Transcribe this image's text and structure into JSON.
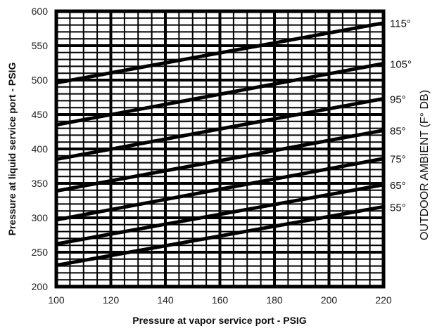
{
  "chart_data": {
    "type": "line",
    "xlabel": "Pressure at vapor service port - PSIG",
    "ylabel": "Pressure at liquid service port - PSIG",
    "right_label": "OUTDOOR AMBIENT (F° DB)",
    "xlim": [
      100,
      220
    ],
    "ylim": [
      200,
      600
    ],
    "x_ticks": [
      "100",
      "120",
      "140",
      "160",
      "180",
      "200",
      "220"
    ],
    "y_ticks": [
      "200",
      "250",
      "300",
      "350",
      "400",
      "450",
      "500",
      "550",
      "600"
    ],
    "grid": true,
    "x": [
      100,
      220
    ],
    "series": [
      {
        "name": "115°",
        "values": [
          496,
          583
        ]
      },
      {
        "name": "105°",
        "values": [
          435,
          524
        ]
      },
      {
        "name": "95°",
        "values": [
          385,
          473
        ]
      },
      {
        "name": "85°",
        "values": [
          339,
          427
        ]
      },
      {
        "name": "75°",
        "values": [
          297,
          386
        ]
      },
      {
        "name": "65°",
        "values": [
          262,
          348
        ]
      },
      {
        "name": "55°",
        "values": [
          231,
          316
        ]
      }
    ],
    "colors": {
      "line": "#000000",
      "grid": "#000000"
    }
  }
}
